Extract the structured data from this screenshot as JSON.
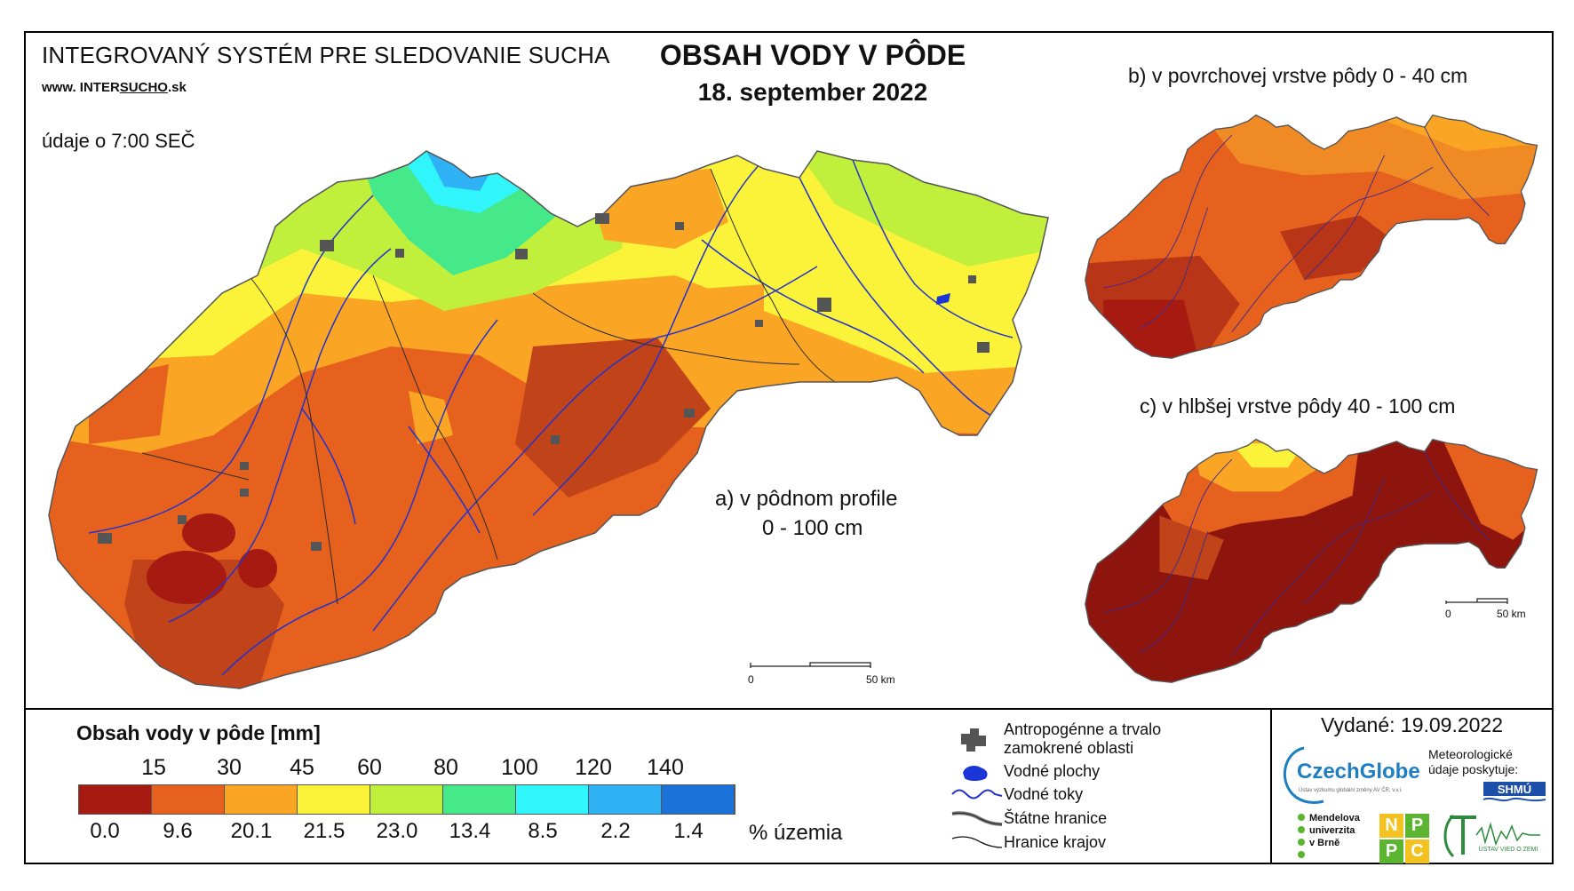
{
  "header": {
    "system_title": "INTEGROVANÝ SYSTÉM PRE SLEDOVANIE SUCHA",
    "website_prefix": "www. INTER",
    "website_underlined": "SUCHO",
    "website_suffix": ".sk",
    "data_time": "údaje o 7:00 SEČ",
    "main_title": "OBSAH VODY V PÔDE",
    "date": "18. september 2022"
  },
  "maps": {
    "a_line1": "a) v pôdnom profile",
    "a_line2": "0 - 100 cm",
    "b_label": "b) v povrchovej vrstve pôdy 0 - 40 cm",
    "c_label": "c) v hlbšej vrstve pôdy 40 - 100 cm",
    "scale_zero": "0",
    "scale_fifty": "50 km"
  },
  "legend": {
    "title": "Obsah vody v pôde  [mm]",
    "thresholds": [
      "15",
      "30",
      "45",
      "60",
      "80",
      "100",
      "120",
      "140"
    ],
    "colors": [
      "#a71a12",
      "#e6611d",
      "#fba524",
      "#fbf33a",
      "#c1f03c",
      "#46e98a",
      "#30f5fb",
      "#2fb2f5",
      "#1b72d8"
    ],
    "percentages": [
      "0.0",
      "9.6",
      "20.1",
      "21.5",
      "23.0",
      "13.4",
      "8.5",
      "2.2",
      "1.4"
    ],
    "percent_label": "% územia"
  },
  "symbols": {
    "anthropogenic": "Antropogénne a trvalo zamokrené oblasti",
    "water_bodies": "Vodné plochy",
    "rivers": "Vodné toky",
    "state_borders": "Štátne hranice",
    "region_borders": "Hranice krajov"
  },
  "issuer": {
    "issued": "Vydané: 19.09.2022",
    "czechglobe": "CzechGlobe",
    "czechglobe_sub": "Ústav výzkumu globální změny AV ČR, v.v.i.",
    "met_data": "Meteorologické údaje poskytuje:",
    "shmu": "SHMÚ",
    "mendel": "Mendelova univerzita v Brně",
    "nppc": [
      "N",
      "P",
      "P",
      "C"
    ],
    "uvz": "ÚSTAV VIED O ZEMI"
  }
}
